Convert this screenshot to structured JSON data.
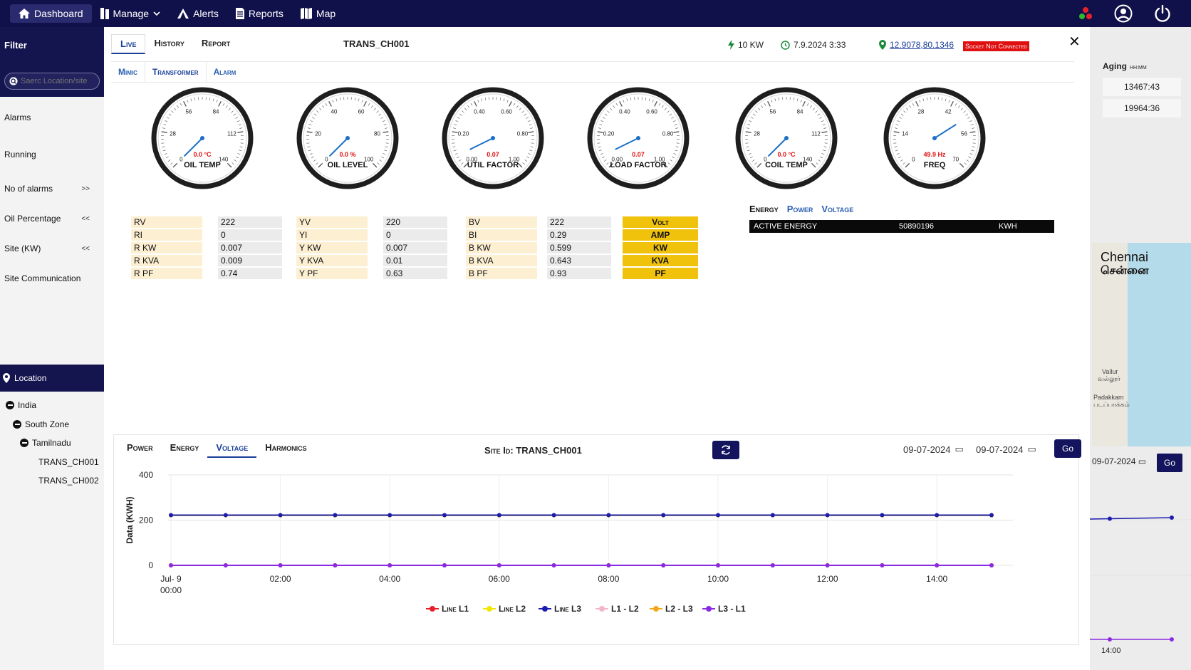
{
  "nav": {
    "items": [
      {
        "label": "Dashboard",
        "icon": "home-icon"
      },
      {
        "label": "Manage",
        "icon": "manage-icon"
      },
      {
        "label": "Alerts",
        "icon": "alerts-icon"
      },
      {
        "label": "Reports",
        "icon": "reports-icon"
      },
      {
        "label": "Map",
        "icon": "map-icon"
      }
    ]
  },
  "sidebar": {
    "filter_title": "Filter",
    "search_placeholder": "Saerc Location/site",
    "items": [
      {
        "label": "Alarms",
        "chevron": ""
      },
      {
        "label": "Running",
        "chevron": ""
      },
      {
        "label": "No of alarms",
        "chevron": ">>"
      },
      {
        "label": "Oil Percentage",
        "chevron": "<<"
      },
      {
        "label": "Site (KW)",
        "chevron": "<<"
      },
      {
        "label": "Site Communication",
        "chevron": ""
      }
    ],
    "location_title": "Location",
    "tree": [
      {
        "label": "India",
        "level": 0,
        "expanded": true
      },
      {
        "label": "South Zone",
        "level": 1,
        "expanded": true
      },
      {
        "label": "Tamilnadu",
        "level": 2,
        "expanded": true
      },
      {
        "label": "TRANS_CH001",
        "level": 3,
        "expanded": false
      },
      {
        "label": "TRANS_CH002",
        "level": 3,
        "expanded": false
      }
    ]
  },
  "background": {
    "aging_title": "Aging",
    "aging_unit": "HH:MM",
    "aging_values": [
      "13467:43",
      "19964:36"
    ],
    "map_city": "Chennai",
    "map_city_local": "சென்னை",
    "map_labels": [
      "Vallur",
      "வல்லூர்",
      "Padakkam",
      "படப்பாக்கம்"
    ],
    "date": "09-07-2024",
    "go_label": "Go",
    "time_label": "14:00"
  },
  "modal": {
    "tabs": [
      "Live",
      "History",
      "Report"
    ],
    "active_tab": "Live",
    "site_title": "TRANS_CH001",
    "power": "10 KW",
    "datetime": "7.9.2024 3:33",
    "coordinates": "12.9078,80.1346",
    "socket_status": "Socket Not Connected",
    "sub_tabs": [
      "Mimic",
      "Transformer",
      "Alarm"
    ],
    "active_sub_tab": "Transformer",
    "gauges": [
      {
        "label": "OIL TEMP",
        "value": "0.0 °C",
        "ticks": [
          "0",
          "28",
          "56",
          "84",
          "112",
          "140"
        ],
        "needle": 0
      },
      {
        "label": "OIL LEVEL",
        "value": "0.0 %",
        "ticks": [
          "0",
          "20",
          "40",
          "60",
          "80",
          "100"
        ],
        "needle": 0
      },
      {
        "label": "UTIL FACTOR",
        "value": "0.07",
        "ticks": [
          "0.00",
          "0.20",
          "0.40",
          "0.60",
          "0.80",
          "1.00"
        ],
        "needle": 0.07
      },
      {
        "label": "LOAD FACTOR",
        "value": "0.07",
        "ticks": [
          "0.00",
          "0.20",
          "0.40",
          "0.60",
          "0.80",
          "1.00"
        ],
        "needle": 0.07
      },
      {
        "label": "COIL TEMP",
        "value": "0.0 °C",
        "ticks": [
          "0",
          "28",
          "56",
          "84",
          "112",
          "140"
        ],
        "needle": 0
      },
      {
        "label": "FREQ",
        "value": "49.9 Hz",
        "ticks": [
          "0",
          "14",
          "28",
          "42",
          "56",
          "70"
        ],
        "needle": 0.713
      }
    ],
    "phases": [
      {
        "rows": [
          [
            "RV",
            "222"
          ],
          [
            "RI",
            "0"
          ],
          [
            "R KW",
            "0.007"
          ],
          [
            "R KVA",
            "0.009"
          ],
          [
            "R PF",
            "0.74"
          ]
        ]
      },
      {
        "rows": [
          [
            "YV",
            "220"
          ],
          [
            "YI",
            "0"
          ],
          [
            "Y KW",
            "0.007"
          ],
          [
            "Y KVA",
            "0.01"
          ],
          [
            "Y PF",
            "0.63"
          ]
        ]
      },
      {
        "rows": [
          [
            "BV",
            "222"
          ],
          [
            "BI",
            "0.29"
          ],
          [
            "B KW",
            "0.599"
          ],
          [
            "B KVA",
            "0.643"
          ],
          [
            "B PF",
            "0.93"
          ]
        ]
      }
    ],
    "units": [
      "Volt",
      "AMP",
      "KW",
      "KVA",
      "PF"
    ],
    "energy_tabs": [
      "Energy",
      "Power",
      "Voltage"
    ],
    "active_energy": {
      "label": "ACTIVE ENERGY",
      "value": "50890196",
      "unit": "KWH"
    },
    "chart_tabs": [
      "Power",
      "Energy",
      "Voltage",
      "Harmonics"
    ],
    "active_chart_tab": "Voltage",
    "site_id_label": "Site Id: TRANS_CH001",
    "date_from": "09-07-2024",
    "date_to": "09-07-2024",
    "go_label": "Go"
  },
  "colors": {
    "navy": "#10104a",
    "accent_blue": "#1a3f9a",
    "unit_yellow": "#f0c20c",
    "label_cream": "#fdf0d2",
    "alert_red": "#e01010"
  },
  "chart_data": {
    "type": "line",
    "ylabel": "Data (KWH)",
    "ylim": [
      0,
      400
    ],
    "yticks": [
      "0",
      "200",
      "400"
    ],
    "x": [
      "00:00",
      "01:00",
      "02:00",
      "03:00",
      "04:00",
      "05:00",
      "06:00",
      "07:00",
      "08:00",
      "09:00",
      "10:00",
      "11:00",
      "12:00",
      "13:00",
      "14:00",
      "15:00"
    ],
    "xtick_labels": [
      {
        "at": 0,
        "label": "Jul- 9",
        "sub": "00:00"
      },
      {
        "at": 2,
        "label": "02:00"
      },
      {
        "at": 4,
        "label": "04:00"
      },
      {
        "at": 6,
        "label": "06:00"
      },
      {
        "at": 8,
        "label": "08:00"
      },
      {
        "at": 10,
        "label": "10:00"
      },
      {
        "at": 12,
        "label": "12:00"
      },
      {
        "at": 14,
        "label": "14:00"
      }
    ],
    "grid": true,
    "legend": "bottom",
    "series": [
      {
        "name": "Line L1",
        "color": "#e8202a",
        "values": [
          0,
          0,
          0,
          0,
          0,
          0,
          0,
          0,
          0,
          0,
          0,
          0,
          0,
          0,
          0,
          0
        ]
      },
      {
        "name": "Line L2",
        "color": "#f4e600",
        "values": [
          221,
          221,
          221,
          221,
          221,
          221,
          221,
          221,
          221,
          221,
          221,
          221,
          221,
          221,
          221,
          221
        ]
      },
      {
        "name": "Line L3",
        "color": "#1c1cb0",
        "values": [
          222,
          222,
          222,
          222,
          222,
          222,
          222,
          222,
          222,
          222,
          222,
          222,
          222,
          222,
          222,
          222
        ]
      },
      {
        "name": "L1 - L2",
        "color": "#f2b6c8",
        "values": [
          0,
          0,
          0,
          0,
          0,
          0,
          0,
          0,
          0,
          0,
          0,
          0,
          0,
          0,
          0,
          0
        ]
      },
      {
        "name": "L2 - L3",
        "color": "#f2a81c",
        "values": [
          0,
          0,
          0,
          0,
          0,
          0,
          0,
          0,
          0,
          0,
          0,
          0,
          0,
          0,
          0,
          0
        ]
      },
      {
        "name": "L3 - L1",
        "color": "#8a2be2",
        "values": [
          0,
          0,
          0,
          0,
          0,
          0,
          0,
          0,
          0,
          0,
          0,
          0,
          0,
          0,
          0,
          0
        ]
      }
    ]
  }
}
